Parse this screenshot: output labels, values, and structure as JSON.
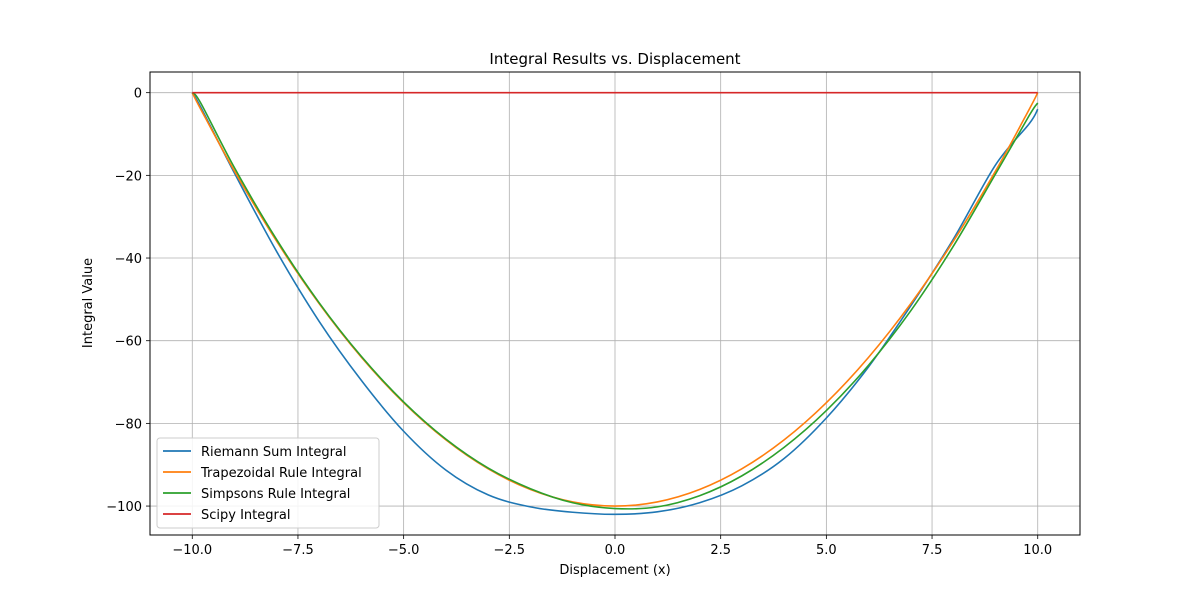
{
  "chart_data": {
    "type": "line",
    "title": "Integral Results vs. Displacement",
    "xlabel": "Displacement (x)",
    "ylabel": "Integral Value",
    "xlim": [
      -11,
      11
    ],
    "ylim": [
      -107,
      5
    ],
    "xticks": [
      -10.0,
      -7.5,
      -5.0,
      -2.5,
      0.0,
      2.5,
      5.0,
      7.5,
      10.0
    ],
    "xtick_labels": [
      "−10.0",
      "−7.5",
      "−5.0",
      "−2.5",
      "0.0",
      "2.5",
      "5.0",
      "7.5",
      "10.0"
    ],
    "yticks": [
      0,
      -20,
      -40,
      -60,
      -80,
      -100
    ],
    "ytick_labels": [
      "0",
      "−20",
      "−40",
      "−60",
      "−80",
      "−100"
    ],
    "grid": true,
    "legend_position": "lower-left",
    "series": [
      {
        "name": "Riemann Sum Integral",
        "color": "#1f77b4",
        "x": [
          -10,
          -9.8,
          -9,
          -8,
          -7,
          -6,
          -5,
          -4,
          -3,
          -2,
          -1,
          0,
          1,
          2,
          3,
          4,
          5,
          6,
          7,
          8,
          9,
          9.8,
          10
        ],
        "y": [
          0,
          -3.5,
          -19.5,
          -38.5,
          -55.3,
          -69.6,
          -81.9,
          -91.3,
          -97.3,
          -100.2,
          -101.5,
          -102,
          -101.4,
          -99.2,
          -95.1,
          -88.5,
          -78.7,
          -66.3,
          -51.5,
          -35.5,
          -17.5,
          -7.5,
          -4
        ]
      },
      {
        "name": "Trapezoidal Rule Integral",
        "color": "#ff7f0e",
        "x": [
          -10,
          -9.8,
          -9,
          -8,
          -7,
          -6,
          -5,
          -4,
          -3,
          -2,
          -1,
          0,
          1,
          2,
          3,
          4,
          5,
          6,
          7,
          8,
          9,
          9.8,
          10
        ],
        "y": [
          0,
          -4,
          -19,
          -36,
          -51,
          -64,
          -75,
          -84,
          -91,
          -96,
          -99,
          -100,
          -99,
          -96,
          -91,
          -84,
          -75,
          -64,
          -51,
          -36,
          -19,
          -4,
          0
        ]
      },
      {
        "name": "Simpsons Rule Integral",
        "color": "#2ca02c",
        "x": [
          -10,
          -9.8,
          -9,
          -8,
          -7,
          -6,
          -5,
          -4,
          -3,
          -2,
          -1,
          0,
          1,
          2,
          3,
          4,
          5,
          6,
          7,
          8,
          9,
          9.8,
          10
        ],
        "y": [
          0,
          -2.5,
          -18.2,
          -35.6,
          -50.8,
          -63.8,
          -74.8,
          -83.8,
          -90.8,
          -95.8,
          -99.2,
          -100.6,
          -100.2,
          -97.5,
          -92.7,
          -85.8,
          -76.9,
          -65.9,
          -52.7,
          -37.2,
          -19.7,
          -5.5,
          -2.5
        ]
      },
      {
        "name": "Scipy Integral",
        "color": "#d62728",
        "x": [
          -10,
          10
        ],
        "y": [
          0,
          0
        ]
      }
    ]
  }
}
